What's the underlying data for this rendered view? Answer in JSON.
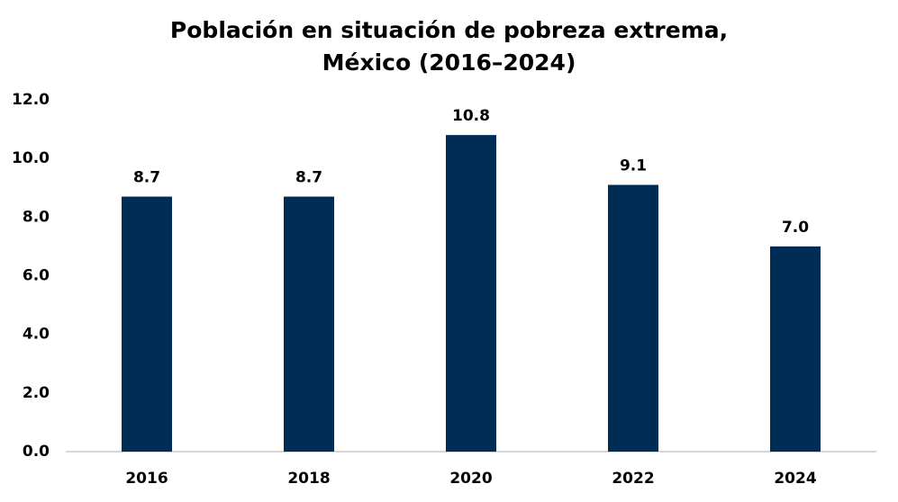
{
  "chart_data": {
    "type": "bar",
    "title": "Población en situación de pobreza extrema, México (2016–2024)",
    "categories": [
      "2016",
      "2018",
      "2020",
      "2022",
      "2024"
    ],
    "values": [
      8.7,
      8.7,
      10.8,
      9.1,
      7.0
    ],
    "value_labels": [
      "8.7",
      "8.7",
      "10.8",
      "9.1",
      "7.0"
    ],
    "color": "#002d56",
    "ylim": [
      0,
      12
    ],
    "yticks": [
      {
        "value": 0,
        "label": "0.0"
      },
      {
        "value": 2,
        "label": "2.0"
      },
      {
        "value": 4,
        "label": "4.0"
      },
      {
        "value": 6,
        "label": "6.0"
      },
      {
        "value": 8,
        "label": "8.0"
      },
      {
        "value": 10,
        "label": "10.0"
      },
      {
        "value": 12,
        "label": "12.0"
      }
    ],
    "grid": false
  }
}
